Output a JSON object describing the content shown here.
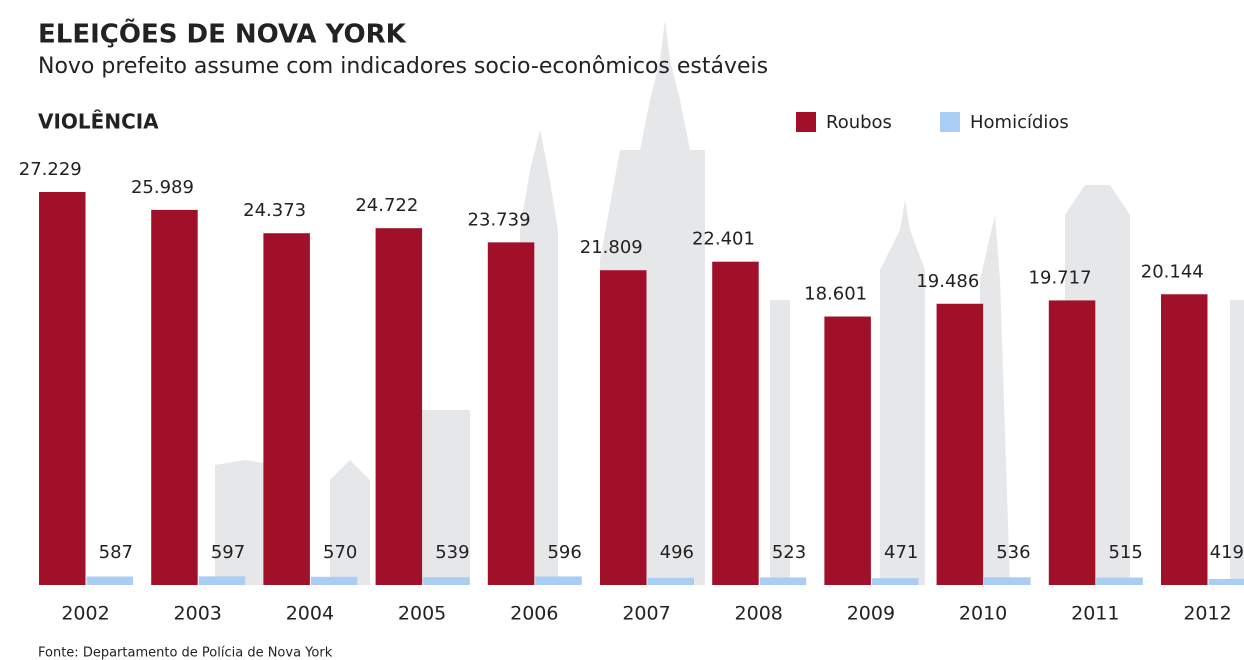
{
  "chart_data": {
    "type": "bar",
    "title": "ELEIÇÕES DE NOVA YORK",
    "subtitle": "Novo prefeito assume com indicadores socio-econômicos estáveis",
    "section_title": "VIOLÊNCIA",
    "source": "Fonte: Departamento de Polícia de Nova York",
    "categories": [
      "2002",
      "2003",
      "2004",
      "2005",
      "2006",
      "2007",
      "2008",
      "2009",
      "2010",
      "2011",
      "2012"
    ],
    "series": [
      {
        "name": "Roubos",
        "color": "#a01029",
        "values": [
          27229,
          25989,
          24373,
          24722,
          23739,
          21809,
          22401,
          18601,
          19486,
          19717,
          20144
        ],
        "value_labels": [
          "27.229",
          "25.989",
          "24.373",
          "24.722",
          "23.739",
          "21.809",
          "22.401",
          "18.601",
          "19.486",
          "19.717",
          "20.144"
        ]
      },
      {
        "name": "Homicídios",
        "color": "#a9cdf3",
        "values": [
          587,
          597,
          570,
          539,
          596,
          496,
          523,
          471,
          536,
          515,
          419
        ]
      }
    ]
  }
}
